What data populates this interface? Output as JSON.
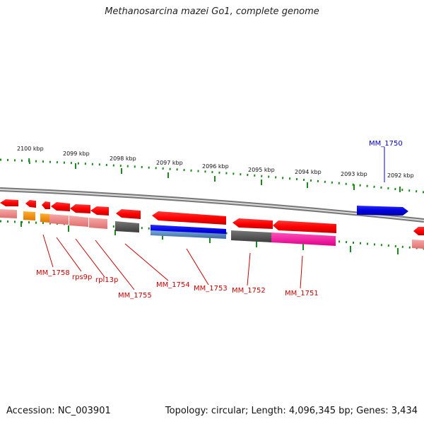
{
  "title": "Methanosarcina mazei Go1, complete genome",
  "footer": {
    "accession": "Accession: NC_003901",
    "summary": "Topology: circular; Length: 4,096,345 bp; Genes: 3,434"
  },
  "scale_labels": [
    "2100 kbp",
    "2099 kbp",
    "2098 kbp",
    "2097 kbp",
    "2096 kbp",
    "2095 kbp",
    "2094 kbp",
    "2093 kbp",
    "2092 kbp"
  ],
  "gene_labels": {
    "mm1750": "MM_1750",
    "mm1758": "MM_1758",
    "rps9p": "rps9p",
    "rpl13p": "rpl13p",
    "mm1755": "MM_1755",
    "mm1754": "MM_1754",
    "mm1753": "MM_1753",
    "mm1752": "MM_1752",
    "mm1751": "MM_1751"
  },
  "colors": {
    "gene_red": "#ff0000",
    "gene_blue": "#0000dd",
    "cog_pink": "#f08080",
    "cog_orange": "#ff9900",
    "cog_gray": "#555555",
    "cog_steelblue": "#4a7fb5",
    "cog_magenta": "#ff1fa0",
    "tick_green": "#1a8a1a",
    "backbone": "#999999"
  }
}
